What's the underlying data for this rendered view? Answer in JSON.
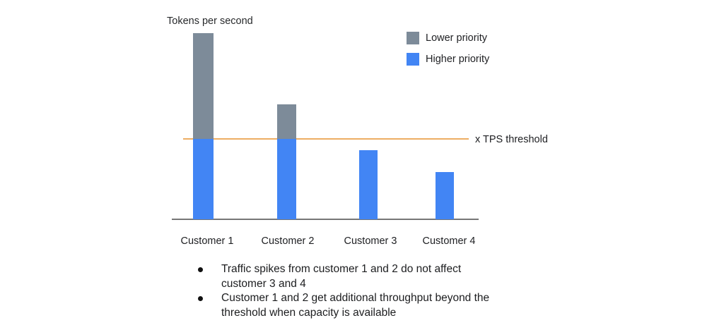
{
  "chart": {
    "title": "Tokens per second",
    "threshold_label": "x TPS threshold"
  },
  "chart_data": {
    "type": "bar",
    "stacked": true,
    "title": "Tokens per second",
    "ylabel": "Tokens per second",
    "xlabel": "",
    "categories": [
      "Customer 1",
      "Customer 2",
      "Customer 3",
      "Customer 4"
    ],
    "series": [
      {
        "name": "Higher priority",
        "color": "#4285f4",
        "values": [
          1.0,
          1.0,
          0.86,
          0.59
        ]
      },
      {
        "name": "Lower priority",
        "color": "#7d8b99",
        "values": [
          1.32,
          0.43,
          0,
          0
        ]
      }
    ],
    "threshold": {
      "label": "x TPS threshold",
      "value": 1.0,
      "color": "#edad63"
    },
    "units": "relative to TPS threshold (threshold = 1.0)",
    "legend_position": "top-right",
    "legend_order": [
      "Lower priority",
      "Higher priority"
    ],
    "grid": false,
    "y_axis_ticks": [],
    "axis_color": "#767676"
  },
  "notes": {
    "items": [
      "Traffic spikes from customer 1 and 2 do not affect customer 3 and 4",
      "Customer 1 and 2 get additional throughput beyond the threshold when capacity is available"
    ]
  }
}
